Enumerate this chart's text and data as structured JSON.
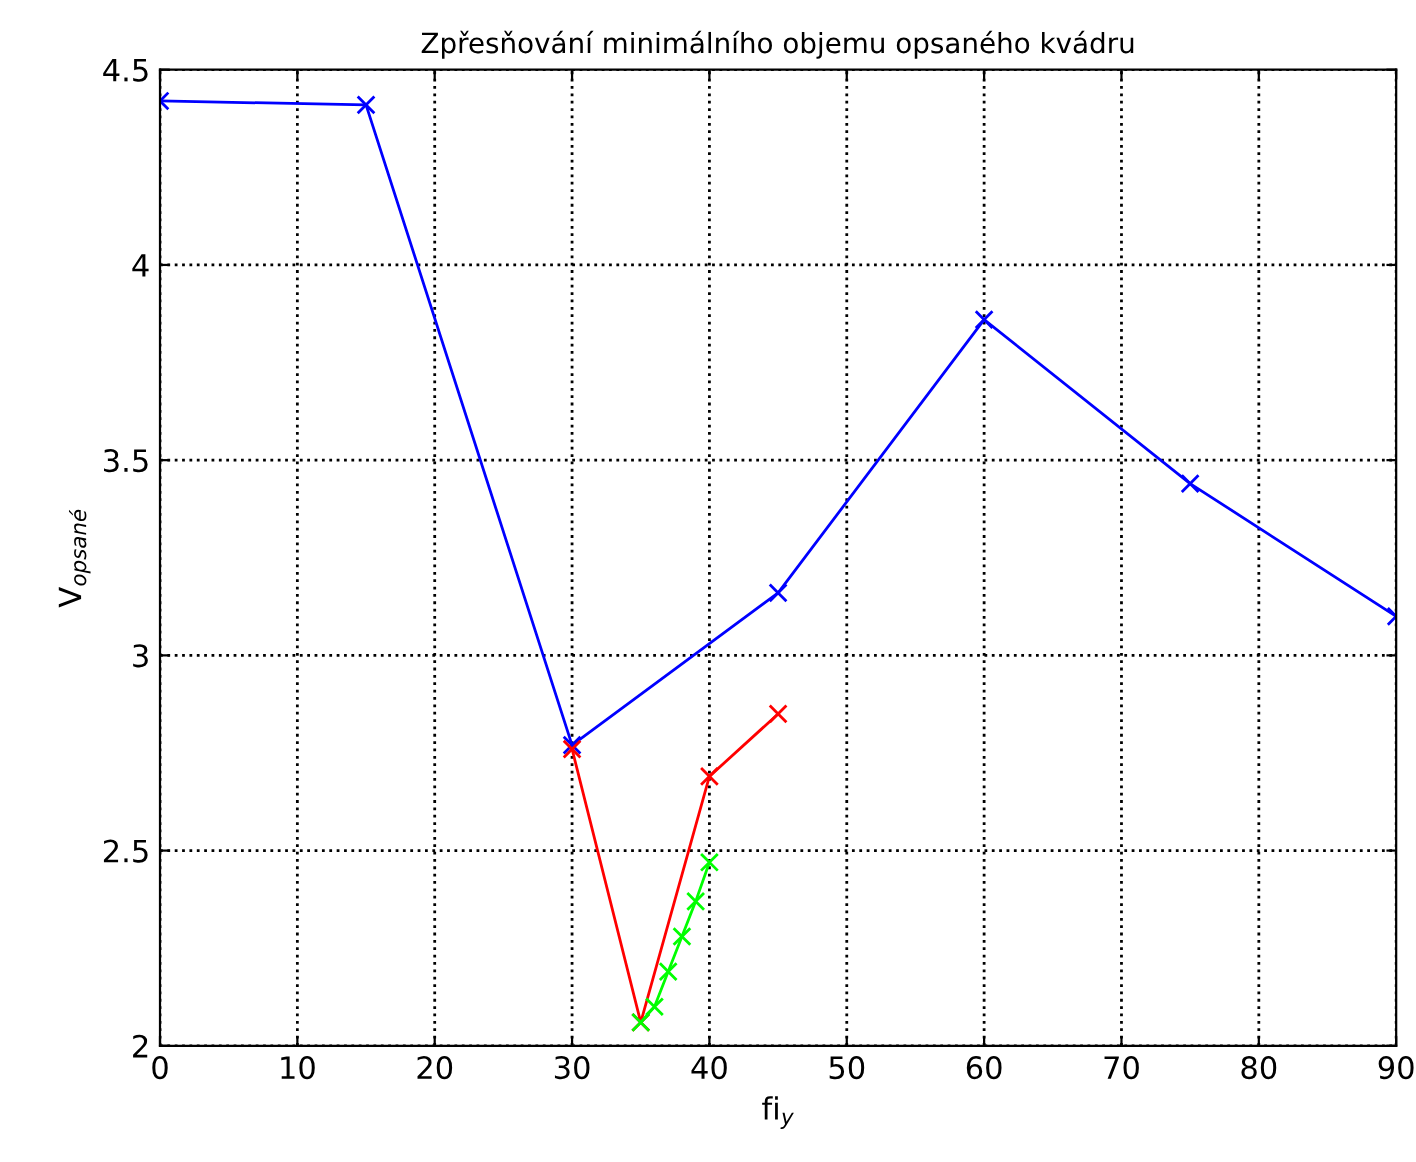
{
  "chart_data": {
    "type": "line",
    "title": "Zpřesňování minimálního objemu opsaného kvádru",
    "xlabel": "fi$_{y}$",
    "ylabel": "V$_{opsané}$",
    "xlim": [
      0,
      90
    ],
    "xticks": [
      0,
      10,
      20,
      30,
      40,
      50,
      60,
      70,
      80,
      90
    ],
    "ylim": [
      2,
      4.5
    ],
    "yticks": [
      2,
      2.5,
      3,
      3.5,
      4,
      4.5
    ],
    "grid": true,
    "marker": "cross",
    "line_style": "solid",
    "series": [
      {
        "color": "#0000ff",
        "x": [
          0,
          15,
          30,
          45,
          60,
          75,
          90
        ],
        "values": [
          4.42,
          4.41,
          2.77,
          3.16,
          3.86,
          3.44,
          3.1
        ]
      },
      {
        "color": "#ff0000",
        "x": [
          30,
          35,
          40,
          45
        ],
        "values": [
          2.76,
          2.06,
          2.69,
          2.85
        ]
      },
      {
        "color": "#00ff00",
        "x": [
          35,
          36,
          37,
          38,
          39,
          40
        ],
        "values": [
          2.06,
          2.1,
          2.19,
          2.28,
          2.37,
          2.47
        ]
      }
    ]
  }
}
